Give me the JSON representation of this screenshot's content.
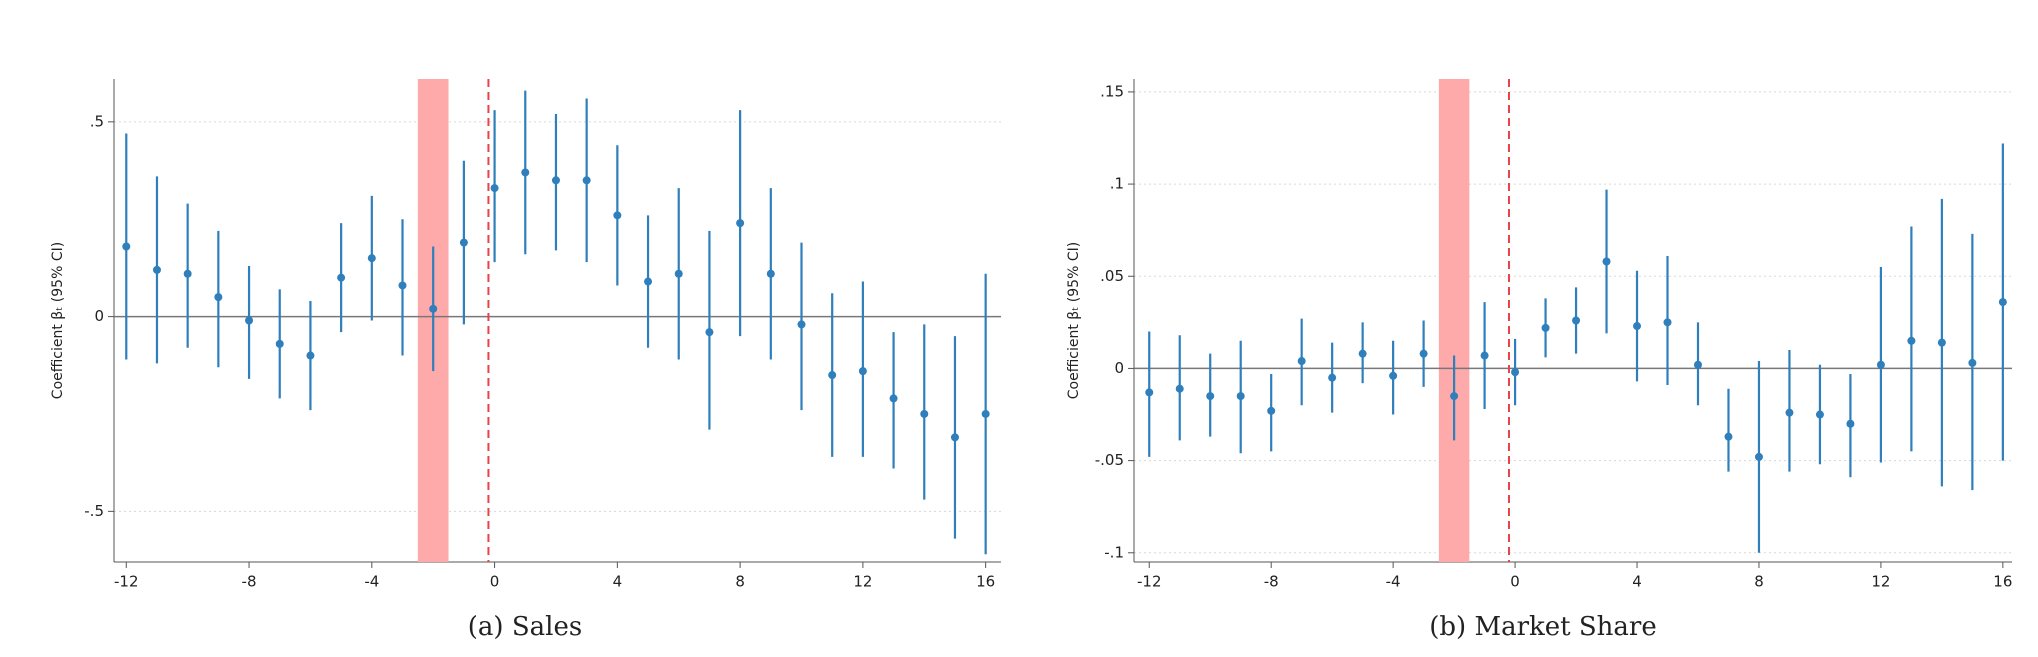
{
  "chart_data": [
    {
      "type": "errorbar",
      "caption": "(a) Sales",
      "y_label": "Coefficient βₜ (95% CI)",
      "x": [
        -12,
        -11,
        -10,
        -9,
        -8,
        -7,
        -6,
        -5,
        -4,
        -3,
        -2,
        -1,
        0,
        1,
        2,
        3,
        4,
        5,
        6,
        7,
        8,
        9,
        10,
        11,
        12,
        13,
        14,
        15,
        16
      ],
      "values": [
        0.18,
        0.12,
        0.11,
        0.05,
        -0.01,
        -0.07,
        -0.1,
        0.1,
        0.15,
        0.08,
        0.02,
        0.19,
        0.33,
        0.37,
        0.35,
        0.35,
        0.26,
        0.09,
        0.11,
        -0.04,
        0.24,
        0.11,
        -0.02,
        -0.15,
        -0.14,
        -0.21,
        -0.25,
        -0.31,
        -0.25
      ],
      "lower": [
        -0.11,
        -0.12,
        -0.08,
        -0.13,
        -0.16,
        -0.21,
        -0.24,
        -0.04,
        -0.01,
        -0.1,
        -0.14,
        -0.02,
        0.14,
        0.16,
        0.17,
        0.14,
        0.08,
        -0.08,
        -0.11,
        -0.29,
        -0.05,
        -0.11,
        -0.24,
        -0.36,
        -0.36,
        -0.39,
        -0.47,
        -0.57,
        -0.61
      ],
      "upper": [
        0.47,
        0.36,
        0.29,
        0.22,
        0.13,
        0.07,
        0.04,
        0.24,
        0.31,
        0.25,
        0.18,
        0.4,
        0.53,
        0.58,
        0.52,
        0.56,
        0.44,
        0.26,
        0.33,
        0.22,
        0.53,
        0.33,
        0.19,
        0.06,
        0.09,
        -0.04,
        -0.02,
        -0.05,
        0.11
      ],
      "xlim": [
        -12.4,
        16.5
      ],
      "ylim": [
        -0.63,
        0.61
      ],
      "xticks": [
        -12,
        -8,
        -4,
        0,
        4,
        8,
        12,
        16
      ],
      "yticks": [
        {
          "value": -0.5,
          "label": "-.5"
        },
        0,
        {
          "value": 0.5,
          "label": ".5"
        }
      ],
      "grid": true,
      "hline": 0,
      "shade": [
        -2.5,
        -1.5
      ],
      "vline": -0.2,
      "color": "#2e7fbb",
      "shade_color": "#ffaaaa",
      "vline_color": "#e8424a"
    },
    {
      "type": "errorbar",
      "caption": "(b) Market Share",
      "y_label": "Coefficient βₜ (95% CI)",
      "x": [
        -12,
        -11,
        -10,
        -9,
        -8,
        -7,
        -6,
        -5,
        -4,
        -3,
        -2,
        -1,
        0,
        1,
        2,
        3,
        4,
        5,
        6,
        7,
        8,
        9,
        10,
        11,
        12,
        13,
        14,
        15,
        16
      ],
      "values": [
        -0.013,
        -0.011,
        -0.015,
        -0.015,
        -0.023,
        0.004,
        -0.005,
        0.008,
        -0.004,
        0.008,
        -0.015,
        0.007,
        -0.002,
        0.022,
        0.026,
        0.058,
        0.023,
        0.025,
        0.002,
        -0.037,
        -0.048,
        -0.024,
        -0.025,
        -0.03,
        0.002,
        0.015,
        0.014,
        0.003,
        0.036
      ],
      "lower": [
        -0.048,
        -0.039,
        -0.037,
        -0.046,
        -0.045,
        -0.02,
        -0.024,
        -0.008,
        -0.025,
        -0.01,
        -0.039,
        -0.022,
        -0.02,
        0.006,
        0.008,
        0.019,
        -0.007,
        -0.009,
        -0.02,
        -0.056,
        -0.1,
        -0.056,
        -0.052,
        -0.059,
        -0.051,
        -0.045,
        -0.064,
        -0.066,
        -0.05
      ],
      "upper": [
        0.02,
        0.018,
        0.008,
        0.015,
        -0.003,
        0.027,
        0.014,
        0.025,
        0.015,
        0.026,
        0.007,
        0.036,
        0.016,
        0.038,
        0.044,
        0.097,
        0.053,
        0.061,
        0.025,
        -0.011,
        0.004,
        0.01,
        0.002,
        -0.003,
        0.055,
        0.077,
        0.092,
        0.073,
        0.122
      ],
      "xlim": [
        -12.5,
        16.3
      ],
      "ylim": [
        -0.105,
        0.157
      ],
      "xticks": [
        -12,
        -8,
        -4,
        0,
        4,
        8,
        12,
        16
      ],
      "yticks": [
        {
          "value": -0.1,
          "label": "-.1"
        },
        {
          "value": -0.05,
          "label": "-.05"
        },
        0,
        {
          "value": 0.05,
          "label": ".05"
        },
        {
          "value": 0.1,
          "label": ".1"
        },
        {
          "value": 0.15,
          "label": ".15"
        }
      ],
      "grid": true,
      "hline": 0,
      "shade": [
        -2.5,
        -1.5
      ],
      "vline": -0.2,
      "color": "#2e7fbb",
      "shade_color": "#ffaaaa",
      "vline_color": "#e8424a"
    }
  ]
}
